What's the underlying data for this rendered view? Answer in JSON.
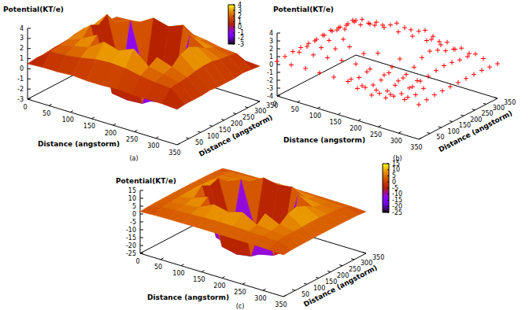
{
  "chart_data": [
    {
      "type": "surface",
      "title": "(a)",
      "xlabel": "Distance (angstorm)",
      "ylabel": "Distance (angstorm)",
      "zlabel": "Potential(KT/e)",
      "x": [
        0,
        35,
        70,
        105,
        140,
        175,
        210,
        245,
        280,
        315,
        350
      ],
      "y": [
        0,
        35,
        70,
        105,
        140,
        175,
        210,
        245,
        280,
        315,
        350
      ],
      "z": [
        [
          0.5,
          0.6,
          0.6,
          0.7,
          0.6,
          0.6,
          0.7,
          0.6,
          0.6,
          0.6,
          0.5
        ],
        [
          0.6,
          1.7,
          1.8,
          2.0,
          2.3,
          2.4,
          2.3,
          2.0,
          1.8,
          1.7,
          0.6
        ],
        [
          0.6,
          1.9,
          2.3,
          2.6,
          3.6,
          3.2,
          3.8,
          2.5,
          2.2,
          1.8,
          0.6
        ],
        [
          0.7,
          2.0,
          2.6,
          3.4,
          -1.9,
          -2.1,
          -2.0,
          3.0,
          2.5,
          1.9,
          0.6
        ],
        [
          0.6,
          2.2,
          3.5,
          -1.8,
          -2.2,
          -2.3,
          -2.2,
          -1.9,
          3.3,
          2.1,
          0.7
        ],
        [
          0.6,
          2.3,
          3.1,
          -2.1,
          -2.3,
          -2.5,
          -2.4,
          -2.1,
          3.6,
          2.2,
          0.6
        ],
        [
          0.7,
          2.1,
          3.7,
          -2.0,
          -2.3,
          -2.4,
          -2.2,
          -1.8,
          3.2,
          2.2,
          0.6
        ],
        [
          0.6,
          1.9,
          2.5,
          3.1,
          -2.0,
          -2.1,
          -1.9,
          3.5,
          2.6,
          2.0,
          0.6
        ],
        [
          0.6,
          1.8,
          2.2,
          2.5,
          3.4,
          3.0,
          3.6,
          2.6,
          2.3,
          1.9,
          0.7
        ],
        [
          0.6,
          1.7,
          1.8,
          2.0,
          2.2,
          2.4,
          2.3,
          2.1,
          1.8,
          1.7,
          0.6
        ],
        [
          0.5,
          0.6,
          0.7,
          0.6,
          0.6,
          0.7,
          0.6,
          0.6,
          0.7,
          0.6,
          0.5
        ]
      ],
      "xlim": [
        0,
        350
      ],
      "xticks": [
        0,
        50,
        100,
        150,
        200,
        250,
        300,
        350
      ],
      "ylim": [
        0,
        350
      ],
      "yticks": [
        50,
        100,
        150,
        200,
        250,
        300,
        350
      ],
      "zlim": [
        -3,
        4
      ],
      "zticks": [
        -3,
        -2,
        -1,
        0,
        1,
        2,
        3,
        4
      ],
      "colorbar": {
        "range": [
          -3,
          4
        ],
        "ticks": [
          -3,
          -2,
          -1,
          0,
          1,
          2,
          3,
          4
        ]
      }
    },
    {
      "type": "scatter",
      "title": "(b)",
      "color": "#ff0000",
      "marker": "plus",
      "xlabel": "Distance (angstorm)",
      "ylabel": "Distance (angstorm)",
      "zlabel": "Potential(KT/e)",
      "x": [
        0,
        35,
        70,
        105,
        140,
        175,
        210,
        245,
        280,
        315,
        350
      ],
      "y": [
        0,
        35,
        70,
        105,
        140,
        175,
        210,
        245,
        280,
        315,
        350
      ],
      "z": [
        [
          0.4,
          0.5,
          0.6,
          0.6,
          0.6,
          0.6,
          0.6,
          0.6,
          0.6,
          0.5,
          0.4
        ],
        [
          0.5,
          1.6,
          1.8,
          2.0,
          2.2,
          2.3,
          2.2,
          2.0,
          1.8,
          1.6,
          0.5
        ],
        [
          0.6,
          1.8,
          2.2,
          2.6,
          3.4,
          3.1,
          3.7,
          2.5,
          2.1,
          1.8,
          0.6
        ],
        [
          0.6,
          2.0,
          2.6,
          3.3,
          -2.4,
          -2.7,
          -2.5,
          3.0,
          2.5,
          1.9,
          0.6
        ],
        [
          0.6,
          2.2,
          3.4,
          -2.3,
          -2.8,
          -3.0,
          -2.8,
          -2.4,
          3.2,
          2.1,
          0.6
        ],
        [
          0.6,
          2.3,
          3.0,
          -2.6,
          -3.0,
          -3.2,
          -3.0,
          -2.6,
          3.5,
          2.2,
          0.6
        ],
        [
          0.6,
          2.1,
          3.6,
          -2.4,
          -2.9,
          -3.0,
          -2.8,
          -2.3,
          3.1,
          2.1,
          0.6
        ],
        [
          0.6,
          1.9,
          2.5,
          3.0,
          -2.5,
          -2.6,
          -2.4,
          3.4,
          2.5,
          1.9,
          0.6
        ],
        [
          0.6,
          1.8,
          2.2,
          2.5,
          3.3,
          3.0,
          3.5,
          2.6,
          2.2,
          1.8,
          0.6
        ],
        [
          0.5,
          1.6,
          1.8,
          2.0,
          2.2,
          2.3,
          2.2,
          2.0,
          1.8,
          1.6,
          0.5
        ],
        [
          0.4,
          0.5,
          0.6,
          0.6,
          0.6,
          0.6,
          0.6,
          0.6,
          0.6,
          0.5,
          0.4
        ]
      ],
      "xlim": [
        0,
        350
      ],
      "xticks": [
        0,
        50,
        100,
        150,
        200,
        250,
        300,
        350
      ],
      "ylim": [
        0,
        350
      ],
      "yticks": [
        50,
        100,
        150,
        200,
        250,
        300,
        350
      ],
      "zlim": [
        -4,
        4
      ],
      "zticks": [
        -4,
        -3,
        -2,
        -1,
        0,
        1,
        2,
        3,
        4
      ]
    },
    {
      "type": "surface",
      "title": "(c)",
      "xlabel": "Distance (angstorm)",
      "ylabel": "Distance (angstorm)",
      "zlabel": "Potential(KT/e)",
      "x": [
        0,
        35,
        70,
        105,
        140,
        175,
        210,
        245,
        280,
        315,
        350
      ],
      "y": [
        0,
        35,
        70,
        105,
        140,
        175,
        210,
        245,
        280,
        315,
        350
      ],
      "z": [
        [
          1.5,
          2.0,
          2.2,
          2.3,
          2.4,
          2.4,
          2.3,
          2.3,
          2.2,
          2.0,
          1.5
        ],
        [
          2.0,
          4.5,
          5.0,
          5.3,
          5.6,
          5.8,
          5.6,
          5.3,
          5.0,
          4.6,
          2.0
        ],
        [
          2.2,
          5.0,
          5.8,
          7.0,
          11.5,
          9.5,
          12.0,
          6.8,
          5.6,
          5.1,
          2.1
        ],
        [
          2.3,
          5.4,
          7.2,
          10.8,
          -18.0,
          -20.0,
          -18.5,
          11.2,
          6.9,
          5.3,
          2.2
        ],
        [
          2.4,
          5.6,
          12.5,
          -17.5,
          -20.5,
          -21.0,
          -20.0,
          -18.0,
          11.0,
          5.5,
          2.3
        ],
        [
          2.4,
          5.8,
          9.8,
          -19.5,
          -21.5,
          -22.0,
          -21.0,
          -19.0,
          12.8,
          5.7,
          2.3
        ],
        [
          2.4,
          5.6,
          11.8,
          -18.0,
          -20.5,
          -21.0,
          -20.5,
          -17.5,
          10.5,
          5.6,
          2.3
        ],
        [
          2.3,
          5.3,
          7.0,
          11.0,
          -18.5,
          -19.5,
          -18.0,
          12.2,
          7.1,
          5.4,
          2.2
        ],
        [
          2.2,
          5.1,
          5.7,
          6.9,
          12.0,
          10.2,
          11.6,
          7.0,
          5.8,
          5.0,
          2.1
        ],
        [
          2.0,
          4.6,
          5.1,
          5.4,
          5.7,
          5.8,
          5.6,
          5.3,
          5.0,
          4.6,
          2.0
        ],
        [
          1.5,
          2.0,
          2.1,
          2.2,
          2.3,
          2.4,
          2.3,
          2.2,
          2.1,
          2.0,
          1.5
        ]
      ],
      "xlim": [
        0,
        350
      ],
      "xticks": [
        0,
        50,
        100,
        150,
        200,
        250,
        300,
        350
      ],
      "ylim": [
        0,
        350
      ],
      "yticks": [
        50,
        100,
        150,
        200,
        250,
        300,
        350
      ],
      "zlim": [
        -25,
        15
      ],
      "zticks": [
        -25,
        -20,
        -15,
        -10,
        -5,
        0,
        5,
        10,
        15
      ],
      "colorbar": {
        "range": [
          -25,
          15
        ],
        "ticks": [
          -25,
          -20,
          -15,
          -10,
          -5,
          0,
          5,
          10,
          15
        ]
      }
    }
  ]
}
